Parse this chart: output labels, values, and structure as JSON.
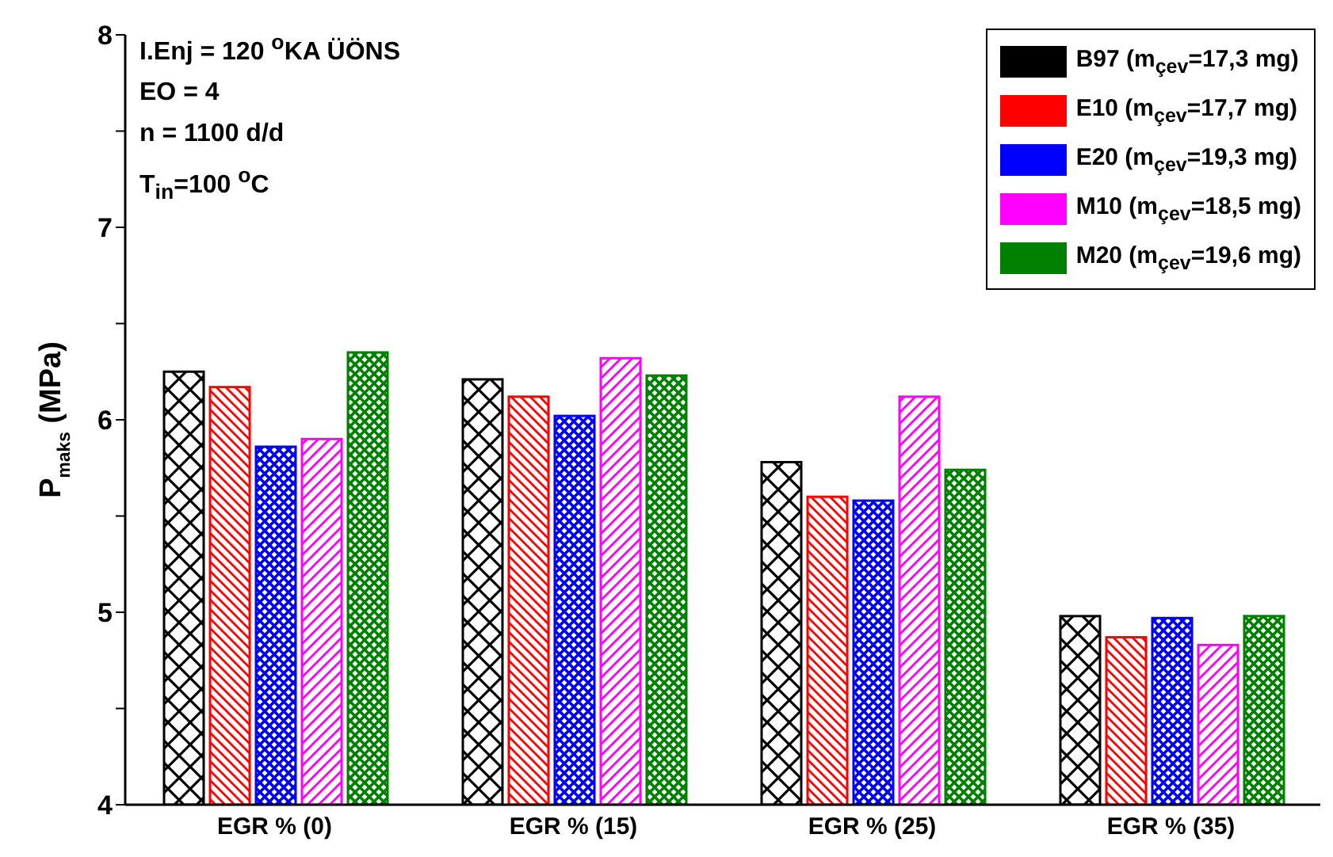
{
  "chart_data": {
    "type": "bar",
    "ylabel": "P$_{maks}$ (MPa)",
    "categories": [
      "EGR % (0)",
      "EGR % (15)",
      "EGR % (25)",
      "EGR % (35)"
    ],
    "series": [
      {
        "name": "B97 (m$_{çev}$=17,3 mg)",
        "color": "#000000",
        "values": [
          6.25,
          6.21,
          5.78,
          4.98
        ]
      },
      {
        "name": "E10 (m$_{çev}$=17,7 mg)",
        "color": "#ff0000",
        "values": [
          6.17,
          6.12,
          5.6,
          4.87
        ]
      },
      {
        "name": "E20 (m$_{çev}$=19,3 mg)",
        "color": "#0000ff",
        "values": [
          5.86,
          6.02,
          5.58,
          4.97
        ]
      },
      {
        "name": "M10 (m$_{çev}$=18,5 mg)",
        "color": "#ff00ff",
        "values": [
          5.9,
          6.32,
          6.12,
          4.83
        ]
      },
      {
        "name": "M20 (m$_{çev}$=19,6 mg)",
        "color": "#008000",
        "values": [
          6.35,
          6.23,
          5.74,
          4.98
        ]
      }
    ],
    "ylim": [
      4,
      8
    ],
    "yticks": [
      4,
      {
        "value": 4.5,
        "label": null
      },
      5,
      {
        "value": 5.5,
        "label": null
      },
      6,
      {
        "value": 6.5,
        "label": null
      },
      7,
      {
        "value": 7.5,
        "label": null
      },
      8
    ],
    "grid": false,
    "legend": "top right",
    "annotations": [
      "I.Enj = 120 $^{o}$KA ÜÖNS",
      "EO = 4",
      "n = 1100 d/d",
      "T$_{in}$=100 $^{o}$C"
    ]
  }
}
